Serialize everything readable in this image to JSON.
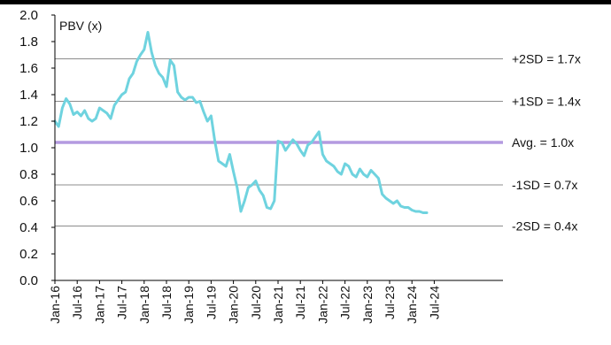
{
  "chart_data": {
    "type": "line",
    "ylabel": "PBV (x)",
    "ylim": [
      0.0,
      2.0
    ],
    "y_ticks": [
      "0.0",
      "0.2",
      "0.4",
      "0.6",
      "0.8",
      "1.0",
      "1.2",
      "1.4",
      "1.6",
      "1.8",
      "2.0"
    ],
    "x_tick_labels": [
      "Jan-16",
      "Jul-16",
      "Jan-17",
      "Jul-17",
      "Jan-18",
      "Jul-18",
      "Jan-19",
      "Jul-19",
      "Jan-20",
      "Jul-20",
      "Jan-21",
      "Jul-21",
      "Jan-22",
      "Jul-22",
      "Jan-23",
      "Jul-23",
      "Jan-24",
      "Jul-24"
    ],
    "grid": "horizontal reference lines only",
    "series_color": "#6fd3df",
    "average_color": "#b49ae0",
    "reference_lines": [
      {
        "label": "+2SD = 1.7x",
        "value": 1.67
      },
      {
        "label": "+1SD = 1.4x",
        "value": 1.35
      },
      {
        "label": "Avg. = 1.0x",
        "value": 1.04
      },
      {
        "label": "-1SD = 0.7x",
        "value": 0.72
      },
      {
        "label": "-2SD = 0.4x",
        "value": 0.41
      }
    ],
    "series": [
      {
        "x": [
          "2016-01",
          "2016-02",
          "2016-03",
          "2016-04",
          "2016-05",
          "2016-06",
          "2016-07",
          "2016-08",
          "2016-09",
          "2016-10",
          "2016-11",
          "2016-12",
          "2017-01",
          "2017-02",
          "2017-03",
          "2017-04",
          "2017-05",
          "2017-06",
          "2017-07",
          "2017-08",
          "2017-09",
          "2017-10",
          "2017-11",
          "2017-12",
          "2018-01",
          "2018-02",
          "2018-03",
          "2018-04",
          "2018-05",
          "2018-06",
          "2018-07",
          "2018-08",
          "2018-09",
          "2018-10",
          "2018-11",
          "2018-12",
          "2019-01",
          "2019-02",
          "2019-03",
          "2019-04",
          "2019-05",
          "2019-06",
          "2019-07",
          "2019-08",
          "2019-09",
          "2019-10",
          "2019-11",
          "2019-12",
          "2020-01",
          "2020-02",
          "2020-03",
          "2020-04",
          "2020-05",
          "2020-06",
          "2020-07",
          "2020-08",
          "2020-09",
          "2020-10",
          "2020-11",
          "2020-12",
          "2021-01",
          "2021-02",
          "2021-03",
          "2021-04",
          "2021-05",
          "2021-06",
          "2021-07",
          "2021-08",
          "2021-09",
          "2021-10",
          "2021-11",
          "2021-12",
          "2022-01",
          "2022-02",
          "2022-03",
          "2022-04",
          "2022-05",
          "2022-06",
          "2022-07",
          "2022-08",
          "2022-09",
          "2022-10",
          "2022-11",
          "2022-12",
          "2023-01",
          "2023-02",
          "2023-03",
          "2023-04",
          "2023-05",
          "2023-06",
          "2023-07",
          "2023-08",
          "2023-09",
          "2023-10",
          "2023-11",
          "2023-12",
          "2024-01",
          "2024-02",
          "2024-03",
          "2024-04",
          "2024-05"
        ],
        "values": [
          1.2,
          1.16,
          1.3,
          1.37,
          1.33,
          1.25,
          1.27,
          1.24,
          1.28,
          1.22,
          1.2,
          1.22,
          1.3,
          1.28,
          1.26,
          1.22,
          1.32,
          1.36,
          1.4,
          1.42,
          1.52,
          1.56,
          1.65,
          1.7,
          1.74,
          1.87,
          1.72,
          1.62,
          1.56,
          1.53,
          1.46,
          1.66,
          1.62,
          1.42,
          1.38,
          1.36,
          1.38,
          1.38,
          1.34,
          1.35,
          1.27,
          1.2,
          1.24,
          1.05,
          0.9,
          0.88,
          0.86,
          0.95,
          0.82,
          0.7,
          0.52,
          0.6,
          0.7,
          0.72,
          0.75,
          0.68,
          0.64,
          0.55,
          0.54,
          0.6,
          1.05,
          1.04,
          0.98,
          1.02,
          1.06,
          1.03,
          0.98,
          0.94,
          1.02,
          1.04,
          1.08,
          1.12,
          0.95,
          0.9,
          0.88,
          0.86,
          0.82,
          0.8,
          0.88,
          0.86,
          0.8,
          0.78,
          0.84,
          0.8,
          0.78,
          0.83,
          0.8,
          0.77,
          0.65,
          0.62,
          0.6,
          0.58,
          0.6,
          0.56,
          0.55,
          0.55,
          0.53,
          0.52,
          0.52,
          0.51,
          0.51
        ]
      }
    ]
  }
}
